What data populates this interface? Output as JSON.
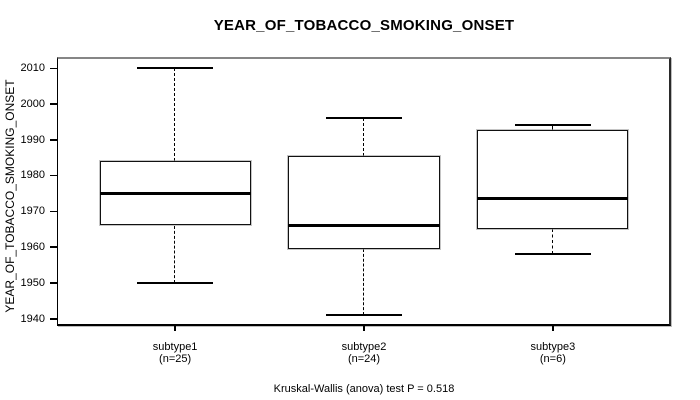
{
  "chart_data": {
    "type": "boxplot",
    "title": "YEAR_OF_TOBACCO_SMOKING_ONSET",
    "ylabel": "YEAR_OF_TOBACCO_SMOKING_ONSET",
    "xlabel": "",
    "stat_label": "Kruskal-Wallis (anova) test P = 0.518",
    "test": "Kruskal-Wallis (anova)",
    "p_value": 0.518,
    "grid": false,
    "yticks": [
      1940,
      1950,
      1960,
      1970,
      1980,
      1990,
      2000,
      2010
    ],
    "ylim": [
      1938.2,
      2012.8
    ],
    "categories": [
      "subtype1",
      "subtype2",
      "subtype3"
    ],
    "category_sublabels": [
      "(n=25)",
      "(n=24)",
      "(n=6)"
    ],
    "groups": [
      {
        "label": "subtype1",
        "sublabel": "(n=25)",
        "n": 25,
        "min": 1950,
        "q1": 1966,
        "median": 1975,
        "q3": 1984,
        "max": 2010
      },
      {
        "label": "subtype2",
        "sublabel": "(n=24)",
        "n": 24,
        "min": 1941,
        "q1": 1959.5,
        "median": 1966,
        "q3": 1985.5,
        "max": 1996
      },
      {
        "label": "subtype3",
        "sublabel": "(n=6)",
        "n": 6,
        "min": 1958,
        "q1": 1965,
        "median": 1973.5,
        "q3": 1992.75,
        "max": 1994
      }
    ]
  },
  "colors": {
    "background": "#ffffff",
    "stroke": "#000000",
    "frame_shadow": "#868686",
    "box_fill": "#ffffff"
  }
}
